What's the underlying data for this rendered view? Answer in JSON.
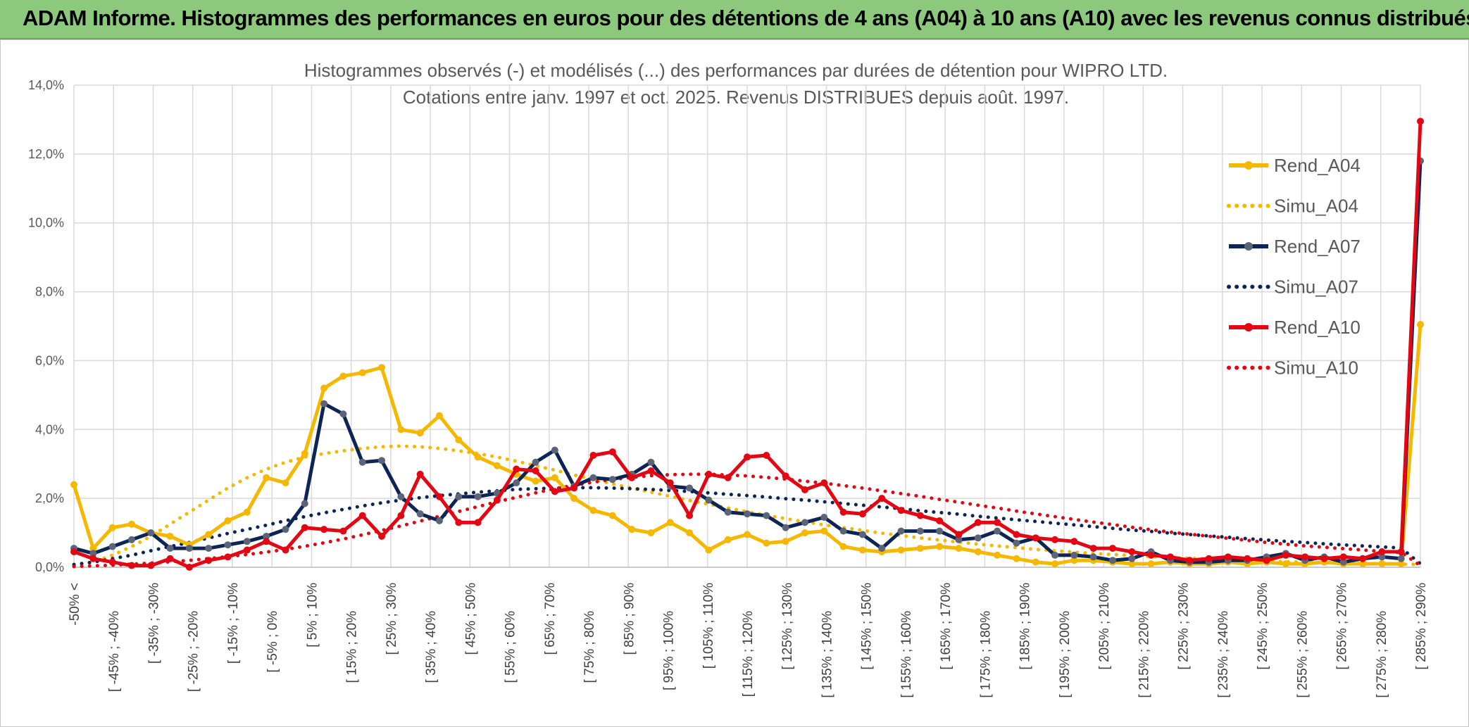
{
  "header": {
    "title": "ADAM Informe. Histogrammes des performances en euros pour des détentions de 4 ans (A04) à 10 ans (A10) avec les revenus connus distribués"
  },
  "chart_data": {
    "type": "line",
    "title_lines": [
      "Histogrammes observés (-) et modélisés (...) des performances par durées de détention pour WIPRO LTD.",
      "Cotations entre janv. 1997 et oct. 2025. Revenus DISTRIBUES depuis août. 1997."
    ],
    "ylim": [
      0,
      14
    ],
    "y_ticks": [
      "0,0%",
      "2,0%",
      "4,0%",
      "6,0%",
      "8,0%",
      "10,0%",
      "12,0%",
      "14,0%"
    ],
    "grid": true,
    "legend_position": "right",
    "x_labels": [
      "-50% <",
      "[ -45% ; -40%",
      "[ -35% ; -30%",
      "[ -25% ; -20%",
      "[ -15% ; -10%",
      "[ -5% ; 0%",
      "[ 5% ; 10%",
      "[ 15% ; 20%",
      "[ 25% ; 30%",
      "[ 35% ; 40%",
      "[ 45% ; 50%",
      "[ 55% ; 60%",
      "[ 65% ; 70%",
      "[ 75% ; 80%",
      "[ 85% ; 90%",
      "[ 95% ; 100%",
      "[ 105% ; 110%",
      "[ 115% ; 120%",
      "[ 125% ; 130%",
      "[ 135% ; 140%",
      "[ 145% ; 150%",
      "[ 155% ; 160%",
      "[ 165% ; 170%",
      "[ 175% ; 180%",
      "[ 185% ; 190%",
      "[ 195% ; 200%",
      "[ 205% ; 210%",
      "[ 215% ; 220%",
      "[ 225% ; 230%",
      "[ 235% ; 240%",
      "[ 245% ; 250%",
      "[ 255% ; 260%",
      "[ 265% ; 270%",
      "[ 275% ; 280%",
      "[ 285% ; 290%"
    ],
    "series": [
      {
        "name": "Rend_A04",
        "style": "solid",
        "markers": true,
        "color": "#f5b800",
        "values": [
          2.4,
          0.55,
          1.15,
          1.25,
          1.0,
          0.9,
          0.65,
          0.95,
          1.35,
          1.6,
          2.6,
          2.45,
          3.3,
          5.2,
          5.55,
          5.65,
          5.8,
          4.0,
          3.9,
          4.4,
          3.7,
          3.2,
          2.95,
          2.7,
          2.5,
          2.6,
          2.0,
          1.65,
          1.5,
          1.1,
          1.0,
          1.3,
          1.0,
          0.5,
          0.8,
          0.95,
          0.7,
          0.75,
          1.0,
          1.05,
          0.6,
          0.5,
          0.45,
          0.5,
          0.55,
          0.6,
          0.55,
          0.45,
          0.35,
          0.25,
          0.15,
          0.1,
          0.2,
          0.2,
          0.15,
          0.1,
          0.1,
          0.15,
          0.1,
          0.1,
          0.15,
          0.1,
          0.15,
          0.1,
          0.1,
          0.15,
          0.1,
          0.1,
          0.1,
          0.1,
          7.05
        ]
      },
      {
        "name": "Simu_A04",
        "style": "dotted",
        "markers": false,
        "color": "#f5b800",
        "values": [
          0.05,
          0.15,
          0.35,
          0.6,
          0.9,
          1.25,
          1.6,
          1.95,
          2.3,
          2.6,
          2.85,
          3.05,
          3.2,
          3.3,
          3.38,
          3.45,
          3.5,
          3.52,
          3.5,
          3.45,
          3.38,
          3.3,
          3.2,
          3.08,
          2.95,
          2.82,
          2.68,
          2.55,
          2.42,
          2.3,
          2.18,
          2.06,
          1.94,
          1.83,
          1.72,
          1.61,
          1.51,
          1.41,
          1.32,
          1.23,
          1.15,
          1.07,
          0.99,
          0.92,
          0.85,
          0.79,
          0.73,
          0.67,
          0.62,
          0.57,
          0.52,
          0.48,
          0.44,
          0.4,
          0.37,
          0.34,
          0.31,
          0.28,
          0.26,
          0.24,
          0.22,
          0.2,
          0.18,
          0.16,
          0.15,
          0.13,
          0.12,
          0.11,
          0.1,
          0.09,
          0.08
        ]
      },
      {
        "name": "Rend_A07",
        "style": "solid",
        "markers": true,
        "color": "#0d2554",
        "values": [
          0.55,
          0.4,
          0.6,
          0.8,
          1.0,
          0.55,
          0.55,
          0.55,
          0.65,
          0.75,
          0.9,
          1.1,
          1.85,
          4.75,
          4.45,
          3.05,
          3.1,
          2.05,
          1.55,
          1.35,
          2.05,
          2.05,
          2.15,
          2.45,
          3.05,
          3.4,
          2.35,
          2.6,
          2.55,
          2.7,
          3.05,
          2.35,
          2.3,
          1.95,
          1.6,
          1.55,
          1.5,
          1.15,
          1.3,
          1.45,
          1.05,
          0.95,
          0.55,
          1.05,
          1.05,
          1.05,
          0.8,
          0.85,
          1.05,
          0.7,
          0.85,
          0.35,
          0.35,
          0.3,
          0.2,
          0.25,
          0.45,
          0.2,
          0.15,
          0.15,
          0.2,
          0.2,
          0.3,
          0.4,
          0.2,
          0.3,
          0.15,
          0.25,
          0.3,
          0.25,
          11.8
        ]
      },
      {
        "name": "Simu_A07",
        "style": "dotted",
        "markers": false,
        "color": "#0d2554",
        "values": [
          0.08,
          0.15,
          0.25,
          0.35,
          0.48,
          0.6,
          0.72,
          0.85,
          0.98,
          1.1,
          1.22,
          1.35,
          1.47,
          1.58,
          1.68,
          1.78,
          1.87,
          1.95,
          2.02,
          2.08,
          2.13,
          2.18,
          2.22,
          2.26,
          2.28,
          2.3,
          2.31,
          2.31,
          2.3,
          2.28,
          2.26,
          2.23,
          2.2,
          2.16,
          2.12,
          2.08,
          2.04,
          1.99,
          1.95,
          1.9,
          1.85,
          1.8,
          1.75,
          1.7,
          1.64,
          1.59,
          1.54,
          1.48,
          1.43,
          1.38,
          1.33,
          1.28,
          1.23,
          1.18,
          1.13,
          1.08,
          1.04,
          0.99,
          0.95,
          0.91,
          0.87,
          0.83,
          0.79,
          0.75,
          0.72,
          0.68,
          0.65,
          0.62,
          0.59,
          0.56,
          0.1
        ]
      },
      {
        "name": "Rend_A10",
        "style": "solid",
        "markers": true,
        "color": "#e30613",
        "values": [
          0.45,
          0.25,
          0.15,
          0.05,
          0.05,
          0.25,
          0.0,
          0.2,
          0.3,
          0.5,
          0.75,
          0.5,
          1.15,
          1.1,
          1.05,
          1.5,
          0.9,
          1.5,
          2.7,
          2.05,
          1.3,
          1.3,
          1.95,
          2.85,
          2.8,
          2.2,
          2.3,
          3.25,
          3.35,
          2.6,
          2.8,
          2.45,
          1.5,
          2.7,
          2.6,
          3.2,
          3.25,
          2.65,
          2.25,
          2.45,
          1.6,
          1.55,
          2.0,
          1.65,
          1.5,
          1.35,
          0.95,
          1.3,
          1.3,
          0.95,
          0.85,
          0.8,
          0.75,
          0.55,
          0.55,
          0.45,
          0.35,
          0.3,
          0.2,
          0.25,
          0.3,
          0.25,
          0.2,
          0.35,
          0.3,
          0.25,
          0.3,
          0.25,
          0.45,
          0.45,
          12.95
        ]
      },
      {
        "name": "Simu_A10",
        "style": "dotted",
        "markers": false,
        "color": "#e30613",
        "values": [
          0.02,
          0.04,
          0.06,
          0.09,
          0.12,
          0.16,
          0.2,
          0.25,
          0.31,
          0.37,
          0.44,
          0.52,
          0.61,
          0.71,
          0.82,
          0.94,
          1.07,
          1.2,
          1.34,
          1.48,
          1.62,
          1.76,
          1.9,
          2.03,
          2.16,
          2.28,
          2.38,
          2.47,
          2.55,
          2.61,
          2.66,
          2.69,
          2.7,
          2.7,
          2.68,
          2.65,
          2.61,
          2.56,
          2.5,
          2.44,
          2.37,
          2.3,
          2.22,
          2.14,
          2.06,
          1.97,
          1.89,
          1.8,
          1.72,
          1.63,
          1.55,
          1.47,
          1.39,
          1.31,
          1.24,
          1.16,
          1.09,
          1.02,
          0.96,
          0.9,
          0.84,
          0.78,
          0.72,
          0.67,
          0.62,
          0.58,
          0.54,
          0.5,
          0.46,
          0.43,
          0.05
        ]
      }
    ]
  }
}
